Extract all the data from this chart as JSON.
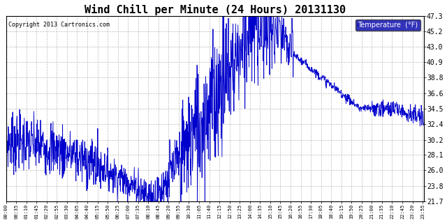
{
  "title": "Wind Chill per Minute (24 Hours) 20131130",
  "copyright": "Copyright 2013 Cartronics.com",
  "legend_label": "Temperature  (°F)",
  "y_ticks": [
    21.7,
    23.8,
    26.0,
    28.1,
    30.2,
    32.4,
    34.5,
    36.6,
    38.8,
    40.9,
    43.0,
    45.2,
    47.3
  ],
  "ylim": [
    21.7,
    47.3
  ],
  "line_color": "#0000CC",
  "legend_bg": "#0000AA",
  "legend_text_color": "#FFFFFF",
  "background_color": "#FFFFFF",
  "grid_color": "#AAAAAA",
  "title_fontsize": 11,
  "x_tick_interval_minutes": 35,
  "total_minutes": 1440
}
